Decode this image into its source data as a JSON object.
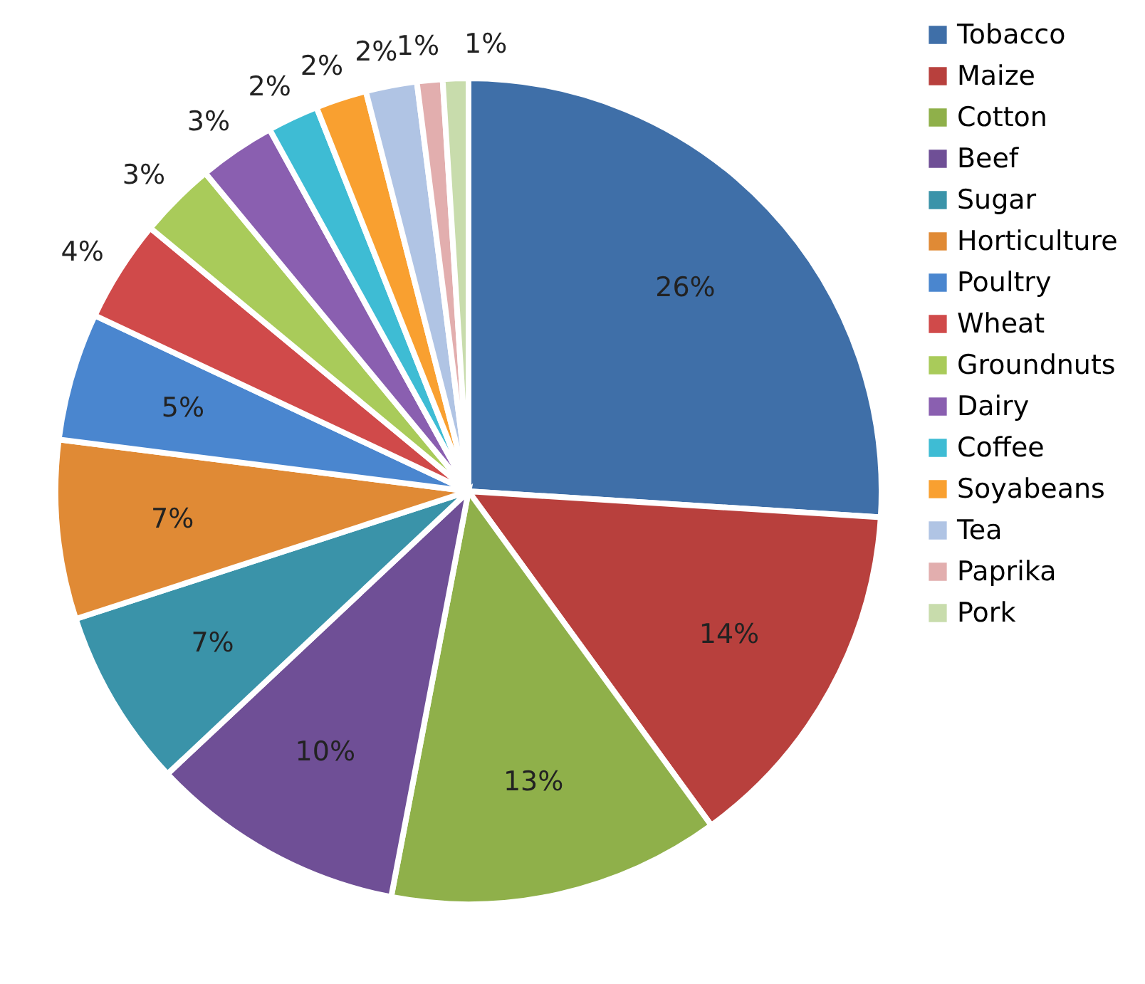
{
  "chart_data": {
    "type": "pie",
    "categories": [
      "Tobacco",
      "Maize",
      "Cotton",
      "Beef",
      "Sugar",
      "Horticulture",
      "Poultry",
      "Wheat",
      "Groundnuts",
      "Dairy",
      "Coffee",
      "Soyabeans",
      "Tea",
      "Paprika",
      "Pork"
    ],
    "values": [
      26,
      14,
      13,
      10,
      7,
      7,
      5,
      4,
      3,
      3,
      2,
      2,
      2,
      1,
      1
    ],
    "value_labels": [
      "26%",
      "14%",
      "13%",
      "10%",
      "7%",
      "7%",
      "5%",
      "4%",
      "3%",
      "3%",
      "2%",
      "2%",
      "2%",
      "1%",
      "1%"
    ],
    "colors": [
      "#3f6fa8",
      "#b8403d",
      "#8fb04a",
      "#6f4f96",
      "#3a93a9",
      "#e08a35",
      "#4a86cf",
      "#d04a4a",
      "#a9cb5a",
      "#8a5fb0",
      "#3ebcd4",
      "#f9a030",
      "#b0c4e4",
      "#e2aeae",
      "#c8dcac"
    ],
    "legend": "right"
  }
}
